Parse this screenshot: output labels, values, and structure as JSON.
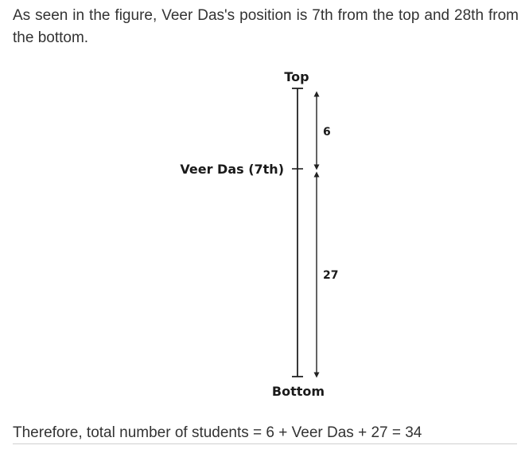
{
  "intro_text": "As seen in the figure, Veer Das's position is 7th from the top and 28th from the bottom.",
  "figure": {
    "top_label": "Top",
    "bottom_label": "Bottom",
    "marker_label": "Veer Das (7th)",
    "above_count": "6",
    "below_count": "27"
  },
  "conclusion_text": "Therefore, total number of students = 6 + Veer Das + 27 = 34"
}
